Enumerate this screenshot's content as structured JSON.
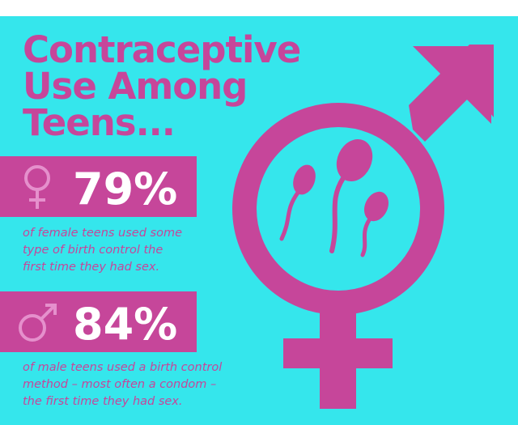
{
  "header": {
    "title": [
      "Contraceptive",
      "Use Among",
      "Teens..."
    ]
  },
  "stats": [
    {
      "value": "79%",
      "description": [
        "of female teens used some",
        "type of birth control the",
        "first time they had sex."
      ]
    },
    {
      "value": "84%",
      "description": [
        "of male teens used a birth control",
        "method – most often a condom –",
        "the first time they had sex."
      ]
    }
  ]
}
